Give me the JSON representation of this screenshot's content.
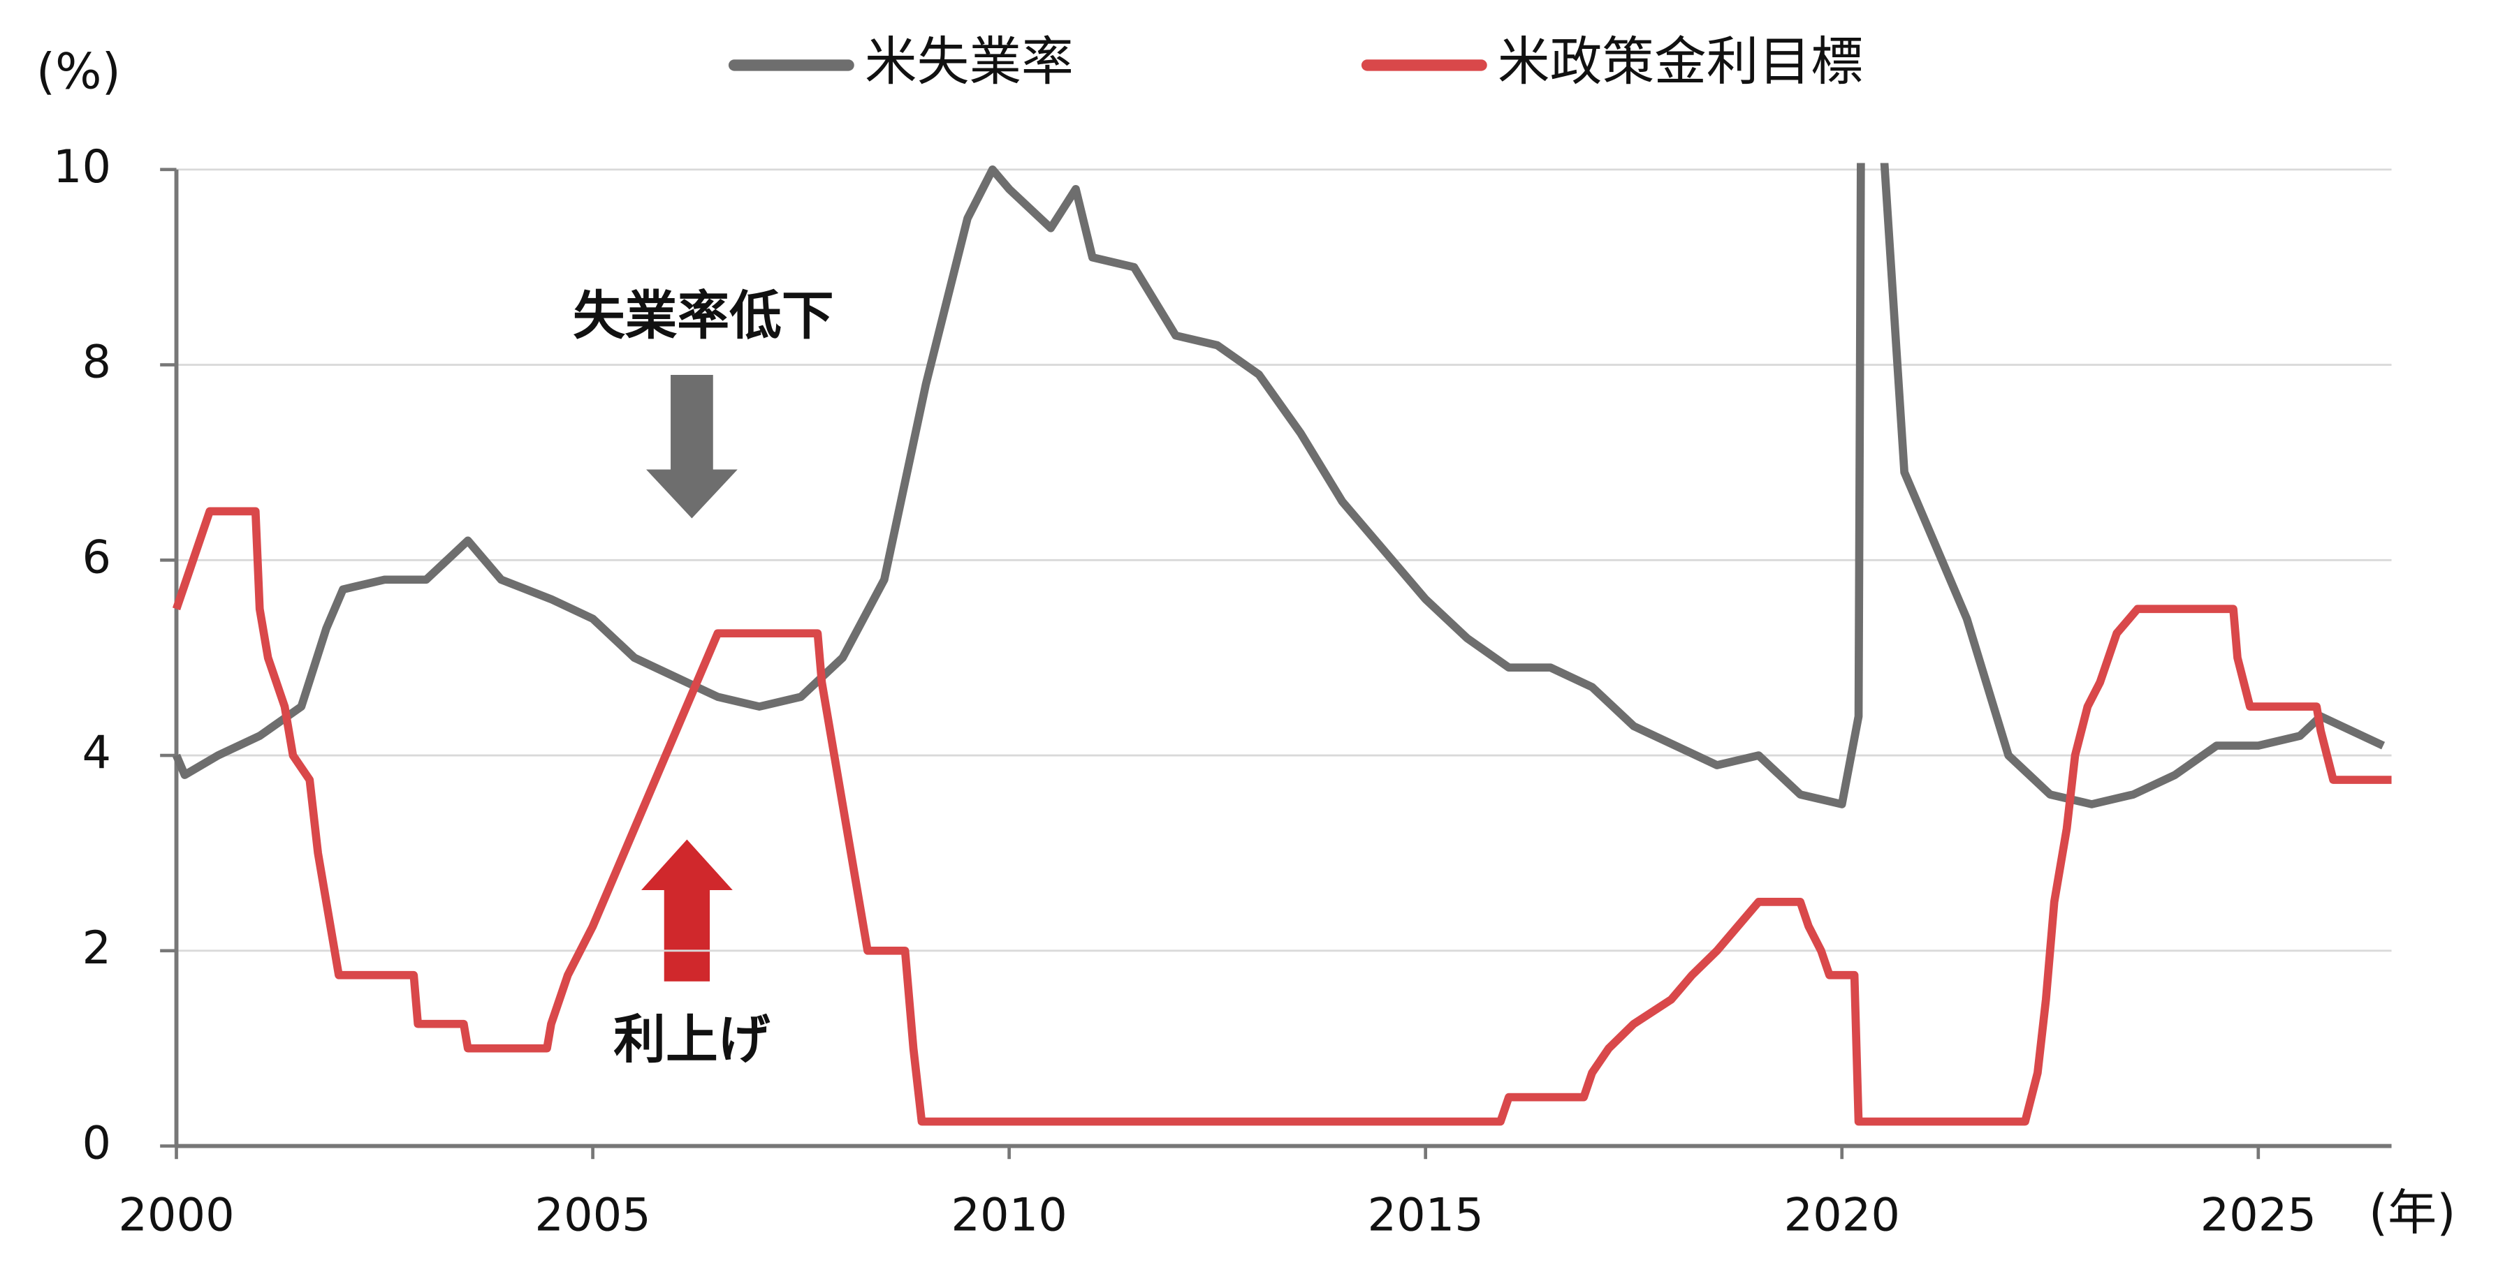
{
  "chart_data": {
    "type": "line",
    "y_unit": "(%)",
    "x_unit": "(年)",
    "xlim": [
      2000,
      2026.6
    ],
    "xticks": [
      2000,
      2005,
      2010,
      2015,
      2020,
      2025
    ],
    "ylim": [
      0,
      10
    ],
    "yticks": [
      0,
      2,
      4,
      6,
      8,
      10
    ],
    "grid": true,
    "legend": "top",
    "series": [
      {
        "name": "米失業率",
        "color": "#6e6e6e",
        "x": [
          2000.0,
          2000.1,
          2000.5,
          2001.0,
          2001.5,
          2001.8,
          2002.0,
          2002.5,
          2003.0,
          2003.5,
          2003.9,
          2004.5,
          2005.0,
          2005.5,
          2006.0,
          2006.5,
          2007.0,
          2007.5,
          2008.0,
          2008.5,
          2009.0,
          2009.5,
          2009.8,
          2010.0,
          2010.5,
          2010.8,
          2011.0,
          2011.5,
          2012.0,
          2012.5,
          2013.0,
          2013.5,
          2014.0,
          2014.5,
          2015.0,
          2015.5,
          2016.0,
          2016.5,
          2017.0,
          2017.5,
          2018.0,
          2018.5,
          2019.0,
          2019.5,
          2020.0,
          2020.2,
          2020.25,
          2020.5,
          2020.75,
          2021.0,
          2021.5,
          2022.0,
          2022.5,
          2023.0,
          2023.5,
          2024.0,
          2024.5,
          2025.0,
          2025.5,
          2025.75,
          2026.0,
          2026.5
        ],
        "values": [
          4.0,
          3.8,
          4.0,
          4.2,
          4.5,
          5.3,
          5.7,
          5.8,
          5.8,
          6.2,
          5.8,
          5.6,
          5.4,
          5.0,
          4.8,
          4.6,
          4.5,
          4.6,
          5.0,
          5.8,
          7.8,
          9.5,
          10.0,
          9.8,
          9.4,
          9.8,
          9.1,
          9.0,
          8.3,
          8.2,
          7.9,
          7.3,
          6.6,
          6.1,
          5.6,
          5.2,
          4.9,
          4.9,
          4.7,
          4.3,
          4.1,
          3.9,
          4.0,
          3.6,
          3.5,
          4.4,
          14.7,
          10.2,
          6.9,
          6.4,
          5.4,
          4.0,
          3.6,
          3.5,
          3.6,
          3.8,
          4.1,
          4.1,
          4.2,
          4.4,
          4.3,
          4.1
        ]
      },
      {
        "name": "米政策金利目標",
        "color": "#d9484a",
        "x": [
          2000.0,
          2000.1,
          2000.2,
          2000.4,
          2000.95,
          2001.0,
          2001.1,
          2001.3,
          2001.4,
          2001.6,
          2001.7,
          2001.8,
          2001.9,
          2001.95,
          2002.85,
          2002.9,
          2003.45,
          2003.5,
          2004.45,
          2004.5,
          2004.7,
          2005.0,
          2005.5,
          2006.0,
          2006.5,
          2007.7,
          2007.75,
          2008.0,
          2008.1,
          2008.3,
          2008.75,
          2008.85,
          2008.95,
          2015.9,
          2016.0,
          2016.9,
          2017.0,
          2017.2,
          2017.5,
          2017.95,
          2018.2,
          2018.5,
          2018.75,
          2019.0,
          2019.5,
          2019.6,
          2019.75,
          2019.85,
          2020.15,
          2020.2,
          2022.2,
          2022.35,
          2022.45,
          2022.55,
          2022.7,
          2022.8,
          2022.95,
          2023.1,
          2023.3,
          2023.55,
          2024.7,
          2024.75,
          2024.9,
          2025.7,
          2025.75,
          2025.9,
          2026.6
        ],
        "values": [
          5.5,
          5.75,
          6.0,
          6.5,
          6.5,
          5.5,
          5.0,
          4.5,
          4.0,
          3.75,
          3.0,
          2.5,
          2.0,
          1.75,
          1.75,
          1.25,
          1.25,
          1.0,
          1.0,
          1.25,
          1.75,
          2.25,
          3.25,
          4.25,
          5.25,
          5.25,
          4.75,
          3.5,
          3.0,
          2.0,
          2.0,
          1.0,
          0.25,
          0.25,
          0.5,
          0.5,
          0.75,
          1.0,
          1.25,
          1.5,
          1.75,
          2.0,
          2.25,
          2.5,
          2.5,
          2.25,
          2.0,
          1.75,
          1.75,
          0.25,
          0.25,
          0.75,
          1.5,
          2.5,
          3.25,
          4.0,
          4.5,
          4.75,
          5.25,
          5.5,
          5.5,
          5.0,
          4.5,
          4.5,
          4.25,
          3.75,
          3.75
        ]
      }
    ],
    "annotations": [
      {
        "text": "失業率低下",
        "color": "#6e6e6e"
      },
      {
        "text": "利上げ",
        "color": "#d0282c"
      }
    ]
  }
}
